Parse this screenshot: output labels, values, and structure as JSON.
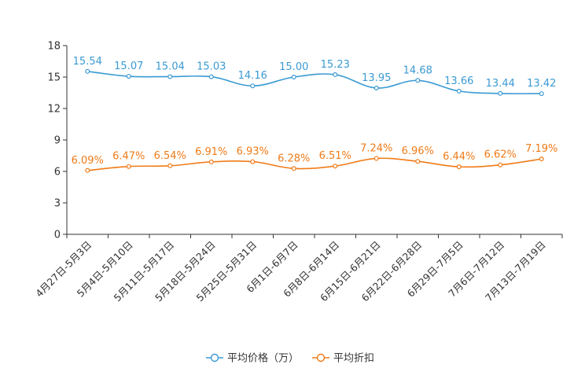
{
  "chart_data": {
    "type": "line",
    "title": "",
    "xlabel": "",
    "ylabel": "",
    "ylim": [
      0,
      18
    ],
    "yticks": [
      0,
      3,
      6,
      9,
      12,
      15,
      18
    ],
    "grid": false,
    "legend_position": "bottom",
    "categories": [
      "4月27日-5月3日",
      "5月4日-5月10日",
      "5月11日-5月17日",
      "5月18日-5月24日",
      "5月25日-5月31日",
      "6月1日-6月7日",
      "6月8日-6月14日",
      "6月15日-6月21日",
      "6月22日-6月28日",
      "6月29日-7月5日",
      "7月6日-7月12日",
      "7月13日-7月19日"
    ],
    "series": [
      {
        "name": "平均价格（万）",
        "color": "#3a9ad3",
        "values": [
          15.54,
          15.07,
          15.04,
          15.03,
          14.16,
          15.0,
          15.23,
          13.95,
          14.68,
          13.66,
          13.44,
          13.42
        ],
        "labels": [
          "15.54",
          "15.07",
          "15.04",
          "15.03",
          "14.16",
          "15.00",
          "15.23",
          "13.95",
          "14.68",
          "13.66",
          "13.44",
          "13.42"
        ]
      },
      {
        "name": "平均折扣",
        "color": "#f07b18",
        "values": [
          6.09,
          6.47,
          6.54,
          6.91,
          6.93,
          6.28,
          6.51,
          7.24,
          6.96,
          6.44,
          6.62,
          7.19
        ],
        "labels": [
          "6.09%",
          "6.47%",
          "6.54%",
          "6.91%",
          "6.93%",
          "6.28%",
          "6.51%",
          "7.24%",
          "6.96%",
          "6.44%",
          "6.62%",
          "7.19%"
        ]
      }
    ]
  }
}
